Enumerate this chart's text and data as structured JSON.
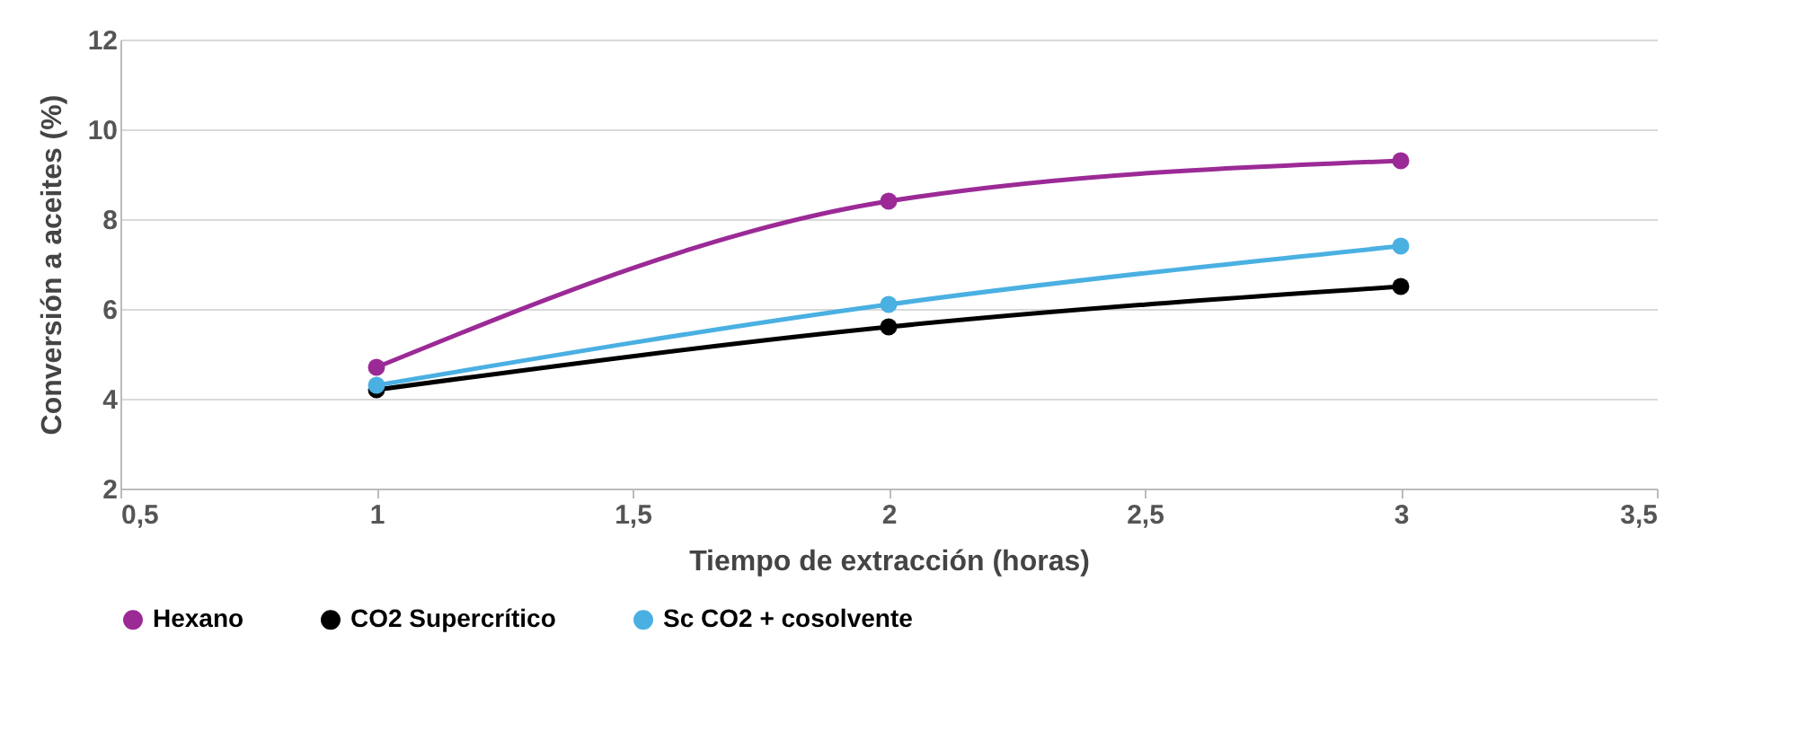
{
  "chart_data": {
    "type": "line",
    "xlabel": "Tiempo de extracción (horas)",
    "ylabel": "Conversión a aceites (%)",
    "x": [
      1,
      2,
      3
    ],
    "series": [
      {
        "name": "Hexano",
        "color": "#9b2a96",
        "values": [
          4.7,
          8.4,
          9.3
        ]
      },
      {
        "name": "CO2 Supercrítico",
        "color": "#000000",
        "values": [
          4.2,
          5.6,
          6.5
        ]
      },
      {
        "name": "Sc CO2 + cosolvente",
        "color": "#4ab0e2",
        "values": [
          4.3,
          6.1,
          7.4
        ]
      }
    ],
    "xlim": [
      0.5,
      3.5
    ],
    "ylim": [
      2,
      12
    ],
    "xticks": [
      {
        "value": 0.5,
        "label": "0,5"
      },
      1,
      {
        "value": 1.5,
        "label": "1,5"
      },
      2,
      {
        "value": 2.5,
        "label": "2,5"
      },
      3,
      {
        "value": 3.5,
        "label": "3,5"
      }
    ],
    "yticks": [
      2,
      4,
      6,
      8,
      10,
      12
    ],
    "grid": "y",
    "legend": "bottom",
    "marker": "circle"
  }
}
